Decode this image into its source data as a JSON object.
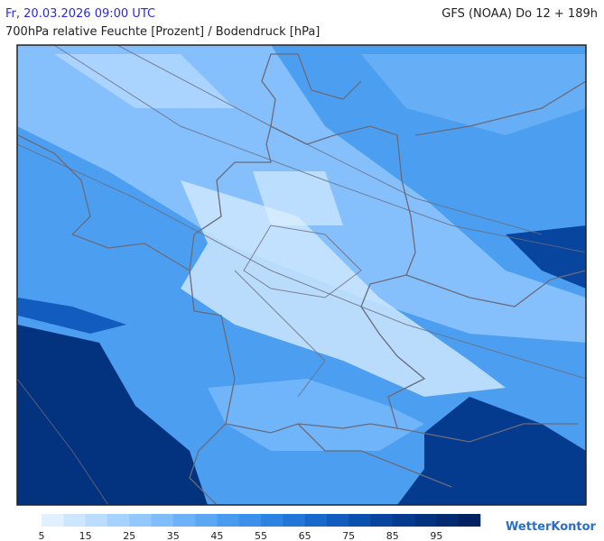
{
  "header": {
    "valid_time": "Fr, 20.03.2026 09:00 UTC",
    "model_run": "GFS (NOAA) Do 12 + 189h",
    "parameter": "700hPa relative Feuchte [Prozent] / Bodendruck [hPa]"
  },
  "legend": {
    "colors": [
      "#e0f0ff",
      "#cde6ff",
      "#b9dcff",
      "#a6d2ff",
      "#93c8ff",
      "#80bdfc",
      "#6db2f8",
      "#5aa7f4",
      "#489cf0",
      "#3a90ea",
      "#2d83e2",
      "#2276d8",
      "#1869cc",
      "#115cbe",
      "#0c50ae",
      "#08459e",
      "#053b8e",
      "#03327f",
      "#022a70",
      "#012262"
    ],
    "labels": [
      5,
      15,
      25,
      35,
      45,
      55,
      65,
      75,
      85,
      95
    ]
  },
  "brand": "WetterKontor"
}
